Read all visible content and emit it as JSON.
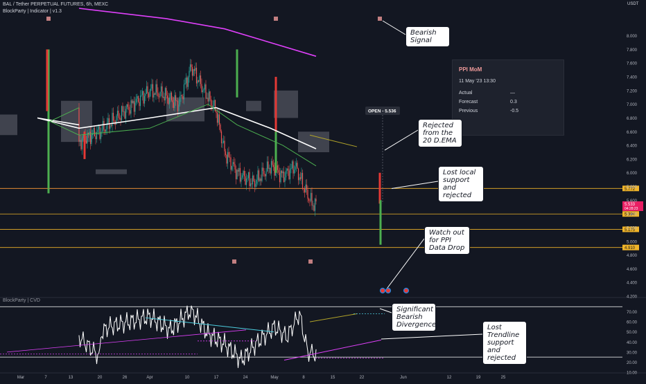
{
  "header": {
    "title": "BAL / Tether PERPETUAL FUTURES, 6h, MEXC",
    "indicator": "BlockParty | Indicator | v1.3",
    "sub_indicator": "BlockParty | CVD",
    "currency": "USDT"
  },
  "econ_popup": {
    "title": "PPI MoM",
    "datetime": "11 May '23 13:30",
    "rows": [
      {
        "label": "Actual",
        "value": "—"
      },
      {
        "label": "Forecast",
        "value": "0.3"
      },
      {
        "label": "Previous",
        "value": "-0.5"
      }
    ]
  },
  "open_tooltip": "OPEN - 5.536",
  "callouts": [
    {
      "id": "bearish-signal",
      "lines": [
        "Bearish",
        "Signal"
      ]
    },
    {
      "id": "rejected-ema",
      "lines": [
        "Rejected",
        "from the",
        "20 D.EMA"
      ]
    },
    {
      "id": "lost-local-support",
      "lines": [
        "Lost local",
        "support",
        "and",
        "rejected"
      ]
    },
    {
      "id": "ppi-watch",
      "lines": [
        "Watch out",
        "for PPI",
        "Data Drop"
      ]
    },
    {
      "id": "bearish-divergence",
      "lines": [
        "Significant",
        "Bearish",
        "Divergence"
      ]
    },
    {
      "id": "lost-trendline",
      "lines": [
        "Lost",
        "Trendline",
        "support",
        "and",
        "rejected"
      ]
    }
  ],
  "colors": {
    "background": "#131722",
    "up_candle": "#26a69a",
    "down_candle": "#ef5350",
    "ema_200": "#e040fb",
    "ema_20": "#4caf50",
    "ema_white": "#ffffff",
    "level_line": "#f0b429",
    "oscillator": "#ffffff"
  },
  "chart_data": [
    {
      "type": "candlestick",
      "title": "BAL / Tether PERPETUAL FUTURES, 6h, MEXC",
      "xlabel": "",
      "ylabel": "USDT",
      "ylim": [
        4.2,
        8.4
      ],
      "y_ticks": [
        "8.000",
        "7.800",
        "7.600",
        "7.400",
        "7.200",
        "7.000",
        "6.800",
        "6.600",
        "6.400",
        "6.200",
        "6.000",
        "5.800",
        "5.600",
        "5.400",
        "5.200",
        "5.000",
        "4.800",
        "4.600",
        "4.400",
        "4.200"
      ],
      "x_ticks": [
        "Mar",
        "7",
        "13",
        "20",
        "26",
        "Apr",
        "10",
        "17",
        "24",
        "May",
        "8",
        "15",
        "22",
        "Jun",
        "12",
        "19",
        "25"
      ],
      "last_price": "5.533",
      "countdown": "04:28:23",
      "levels": [
        {
          "value": 5.772,
          "label": "5.772"
        },
        {
          "value": 5.399,
          "label": "5.399"
        },
        {
          "value": 5.175,
          "label": "5.175"
        },
        {
          "value": 4.91,
          "label": "4.910"
        }
      ],
      "price_path_sampled": [
        [
          "Feb 22",
          6.95
        ],
        [
          "Mar 1",
          7.2
        ],
        [
          "Mar 5",
          6.8
        ],
        [
          "Mar 8",
          6.2
        ],
        [
          "Mar 10",
          5.55
        ],
        [
          "Mar 13",
          6.3
        ],
        [
          "Mar 16",
          6.5
        ],
        [
          "Mar 20",
          6.6
        ],
        [
          "Mar 24",
          6.8
        ],
        [
          "Mar 28",
          7.0
        ],
        [
          "Apr 1",
          7.2
        ],
        [
          "Apr 4",
          7.15
        ],
        [
          "Apr 8",
          7.0
        ],
        [
          "Apr 11",
          7.55
        ],
        [
          "Apr 14",
          7.2
        ],
        [
          "Apr 17",
          6.9
        ],
        [
          "Apr 19",
          6.3
        ],
        [
          "Apr 22",
          6.0
        ],
        [
          "Apr 26",
          5.85
        ],
        [
          "Apr 30",
          6.1
        ],
        [
          "May 3",
          5.95
        ],
        [
          "May 6",
          6.1
        ],
        [
          "May 8",
          5.8
        ],
        [
          "May 10",
          5.55
        ],
        [
          "May 11",
          5.533
        ]
      ],
      "ema_200_sampled": [
        [
          "Feb 22",
          8.4
        ],
        [
          "Apr 5",
          8.25
        ],
        [
          "Apr 19",
          8.1
        ],
        [
          "May 11",
          7.7
        ]
      ],
      "ema_white_sampled": [
        [
          "Feb 22",
          6.7
        ],
        [
          "Mar 5",
          6.8
        ],
        [
          "Mar 15",
          6.65
        ],
        [
          "Apr 1",
          6.8
        ],
        [
          "Apr 17",
          6.95
        ],
        [
          "Apr 30",
          6.65
        ],
        [
          "May 11",
          6.35
        ]
      ],
      "ema_20_sampled": [
        [
          "Feb 22",
          6.95
        ],
        [
          "Mar 8",
          6.75
        ],
        [
          "Mar 15",
          6.55
        ],
        [
          "Apr 1",
          6.65
        ],
        [
          "Apr 15",
          7.0
        ],
        [
          "Apr 22",
          6.7
        ],
        [
          "May 3",
          6.4
        ],
        [
          "May 11",
          6.1
        ]
      ]
    },
    {
      "type": "line",
      "title": "BlockParty | CVD",
      "xlabel": "",
      "ylabel": "",
      "ylim": [
        10,
        80
      ],
      "y_ticks": [
        "70.00",
        "60.00",
        "50.00",
        "40.00",
        "30.00",
        "20.00",
        "10.00"
      ],
      "series": [
        {
          "name": "",
          "values_sampled": [
            [
              "Feb 22",
              45
            ],
            [
              "Feb 27",
              25
            ],
            [
              "Mar 3",
              48
            ],
            [
              "Mar 7",
              30
            ],
            [
              "Mar 10",
              18
            ],
            [
              "Mar 13",
              73
            ],
            [
              "Mar 18",
              40
            ],
            [
              "Mar 22",
              55
            ],
            [
              "Mar 27",
              60
            ],
            [
              "Apr 1",
              65
            ],
            [
              "Apr 6",
              52
            ],
            [
              "Apr 11",
              72
            ],
            [
              "Apr 15",
              48
            ],
            [
              "Apr 19",
              38
            ],
            [
              "Apr 23",
              22
            ],
            [
              "Apr 27",
              40
            ],
            [
              "May 1",
              55
            ],
            [
              "May 4",
              45
            ],
            [
              "May 7",
              68
            ],
            [
              "May 9",
              30
            ],
            [
              "May 11",
              28
            ]
          ]
        }
      ]
    }
  ]
}
